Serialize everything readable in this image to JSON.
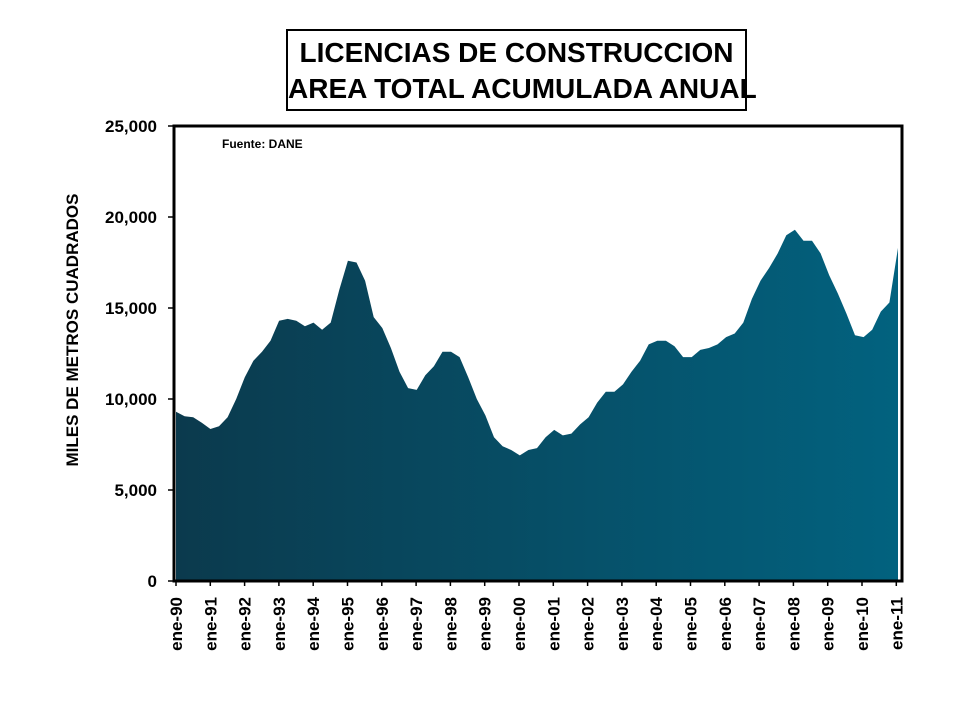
{
  "chart_data": {
    "type": "area",
    "title": [
      "LICENCIAS DE CONSTRUCCION",
      "AREA TOTAL ACUMULADA ANUAL"
    ],
    "ylabel": "MILES DE METROS CUADRADOS",
    "xlabel": "",
    "source": "Fuente: DANE",
    "ylim": [
      0,
      25000
    ],
    "yticks": [
      0,
      5000,
      10000,
      15000,
      20000,
      25000
    ],
    "ytick_labels": [
      "0",
      "5,000",
      "10,000",
      "15,000",
      "20,000",
      "25,000"
    ],
    "xtick_labels": [
      "ene-90",
      "ene-91",
      "ene-92",
      "ene-93",
      "ene-94",
      "ene-95",
      "ene-96",
      "ene-97",
      "ene-98",
      "ene-99",
      "ene-00",
      "ene-01",
      "ene-02",
      "ene-03",
      "ene-04",
      "ene-05",
      "ene-06",
      "ene-07",
      "ene-08",
      "ene-09",
      "ene-10",
      "ene-11"
    ],
    "grid": false,
    "fill_colors": [
      "#0b3a4d",
      "#02627f"
    ],
    "x": [
      "1990-01",
      "1990-04",
      "1990-07",
      "1990-10",
      "1991-01",
      "1991-04",
      "1991-07",
      "1991-10",
      "1992-01",
      "1992-04",
      "1992-07",
      "1992-10",
      "1993-01",
      "1993-04",
      "1993-07",
      "1993-10",
      "1994-01",
      "1994-04",
      "1994-07",
      "1994-10",
      "1995-01",
      "1995-04",
      "1995-07",
      "1995-10",
      "1996-01",
      "1996-04",
      "1996-07",
      "1996-10",
      "1997-01",
      "1997-04",
      "1997-07",
      "1997-10",
      "1998-01",
      "1998-04",
      "1998-07",
      "1998-10",
      "1999-01",
      "1999-04",
      "1999-07",
      "1999-10",
      "2000-01",
      "2000-04",
      "2000-07",
      "2000-10",
      "2001-01",
      "2001-04",
      "2001-07",
      "2001-10",
      "2002-01",
      "2002-04",
      "2002-07",
      "2002-10",
      "2003-01",
      "2003-04",
      "2003-07",
      "2003-10",
      "2004-01",
      "2004-04",
      "2004-07",
      "2004-10",
      "2005-01",
      "2005-04",
      "2005-07",
      "2005-10",
      "2006-01",
      "2006-04",
      "2006-07",
      "2006-10",
      "2007-01",
      "2007-04",
      "2007-07",
      "2007-10",
      "2008-01",
      "2008-04",
      "2008-07",
      "2008-10",
      "2009-01",
      "2009-04",
      "2009-07",
      "2009-10",
      "2010-01",
      "2010-04",
      "2010-07",
      "2010-10",
      "2011-01"
    ],
    "values": [
      9300,
      9050,
      9000,
      8700,
      8350,
      8500,
      9000,
      10000,
      11200,
      12100,
      12600,
      13200,
      14300,
      14400,
      14300,
      14000,
      14200,
      13800,
      14200,
      16000,
      17600,
      17500,
      16500,
      14500,
      13900,
      12800,
      11500,
      10600,
      10500,
      11300,
      11800,
      12600,
      12600,
      12300,
      11200,
      10000,
      9100,
      7900,
      7400,
      7200,
      6900,
      7200,
      7300,
      7900,
      8300,
      8000,
      8100,
      8600,
      9000,
      9800,
      10400,
      10400,
      10800,
      11500,
      12100,
      13000,
      13200,
      13200,
      12900,
      12300,
      12300,
      12700,
      12800,
      13000,
      13400,
      13600,
      14200,
      15500,
      16500,
      17200,
      18000,
      19000,
      19300,
      18700,
      18700,
      18000,
      16800,
      15800,
      14700,
      13500,
      13400,
      13800,
      14800,
      15300,
      18300
    ]
  }
}
